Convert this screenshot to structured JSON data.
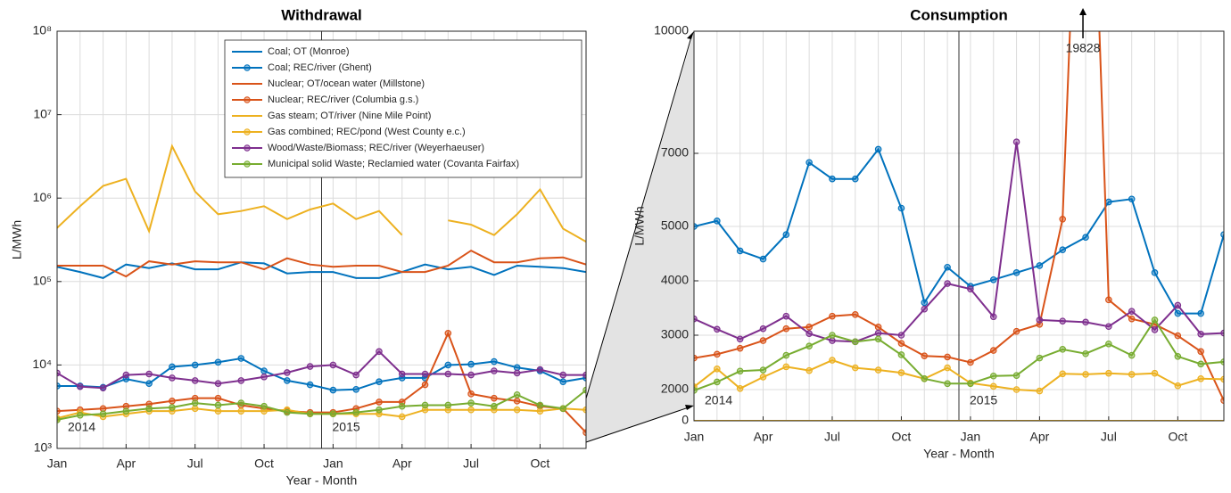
{
  "chart_data": [
    {
      "type": "line",
      "title": "Withdrawal",
      "x_label": "Year - Month",
      "y_label": "L/MWh",
      "yscale": "log",
      "grid": true,
      "legend": "top-right",
      "categories": [
        "Jan",
        null,
        null,
        "Apr",
        null,
        null,
        "Jul",
        null,
        null,
        "Oct",
        null,
        null,
        "Jan",
        null,
        null,
        "Apr",
        null,
        null,
        "Jul",
        null,
        null,
        "Oct",
        null,
        null
      ],
      "year_labels": [
        "2014",
        "2015"
      ],
      "ylim": [
        1000,
        100000000
      ],
      "yticks": [
        {
          "value": 1000,
          "label": "10³"
        },
        {
          "value": 10000,
          "label": "10⁴"
        },
        {
          "value": 100000,
          "label": "10⁵"
        },
        {
          "value": 1000000,
          "label": "10⁶"
        },
        {
          "value": 10000000,
          "label": "10⁷"
        },
        {
          "value": 100000000,
          "label": "10⁸"
        }
      ],
      "series": [
        {
          "name": "Coal; OT (Monroe)",
          "color": "#0072bd",
          "marker": false,
          "values": [
            150000,
            130000,
            110000,
            160000,
            145000,
            165000,
            140000,
            140000,
            170000,
            165000,
            125000,
            130000,
            130000,
            110000,
            110000,
            130000,
            160000,
            140000,
            150000,
            120000,
            155000,
            150000,
            145000,
            130000
          ]
        },
        {
          "name": "Coal; REC/river (Ghent)",
          "color": "#0072bd",
          "marker": true,
          "values": [
            5600,
            5600,
            5400,
            6800,
            6000,
            9500,
            10000,
            10800,
            12000,
            8500,
            6500,
            5800,
            5000,
            5100,
            6300,
            7000,
            7000,
            10000,
            10200,
            11000,
            9300,
            8500,
            6300,
            7000
          ]
        },
        {
          "name": "Nuclear; OT/ocean water (Millstone)",
          "color": "#d95319",
          "marker": false,
          "values": [
            155000,
            155000,
            155000,
            115000,
            175000,
            160000,
            175000,
            170000,
            170000,
            140000,
            190000,
            160000,
            150000,
            155000,
            155000,
            130000,
            130000,
            155000,
            235000,
            170000,
            170000,
            190000,
            195000,
            160000
          ]
        },
        {
          "name": "Nuclear; REC/river (Columbia g.s.)",
          "color": "#d95319",
          "marker": true,
          "values": [
            2800,
            2900,
            3000,
            3200,
            3400,
            3700,
            4000,
            4000,
            3300,
            3000,
            2800,
            2700,
            2700,
            3000,
            3600,
            3600,
            5800,
            24000,
            4500,
            4000,
            3700,
            3200,
            3000,
            1550
          ]
        },
        {
          "name": "Gas steam; OT/river (Nine Mile Point)",
          "color": "#edb120",
          "marker": false,
          "values": [
            440000,
            800000,
            1400000,
            1700000,
            400000,
            4200000,
            1200000,
            640000,
            700000,
            800000,
            560000,
            730000,
            860000,
            560000,
            700000,
            360000,
            null,
            540000,
            480000,
            360000,
            640000,
            1270000,
            430000,
            300000
          ]
        },
        {
          "name": "Gas combined; REC/pond (West County e.c.)",
          "color": "#edb120",
          "marker": true,
          "values": [
            2300,
            2700,
            2400,
            2600,
            2800,
            2800,
            3000,
            2800,
            2800,
            2800,
            2900,
            2600,
            2600,
            2600,
            2600,
            2400,
            2900,
            2900,
            2900,
            2900,
            2900,
            2800,
            3000,
            2900
          ]
        },
        {
          "name": "Wood/Waste/Biomass; REC/river (Weyerhaeuser)",
          "color": "#7e2f8e",
          "marker": true,
          "values": [
            8000,
            5500,
            5300,
            7600,
            7800,
            7000,
            6500,
            6000,
            6500,
            7200,
            8100,
            9600,
            10000,
            7600,
            14500,
            7800,
            7800,
            7800,
            7600,
            8500,
            8000,
            8800,
            7600,
            7600
          ]
        },
        {
          "name": "Municipal solid Waste; Reclamied water (Covanta Fairfax)",
          "color": "#77ac30",
          "marker": true,
          "values": [
            2200,
            2500,
            2600,
            2800,
            3000,
            3100,
            3500,
            3300,
            3500,
            3200,
            2700,
            2600,
            2600,
            2700,
            2900,
            3200,
            3300,
            3300,
            3500,
            3200,
            4400,
            3300,
            3000,
            5000
          ]
        }
      ]
    },
    {
      "type": "line",
      "title": "Consumption",
      "x_label": "Year - Month",
      "y_label": "L/MWh",
      "grid": true,
      "categories": [
        "Jan",
        null,
        null,
        "Apr",
        null,
        null,
        "Jul",
        null,
        null,
        "Oct",
        null,
        null,
        "Jan",
        null,
        null,
        "Apr",
        null,
        null,
        "Jul",
        null,
        null,
        "Oct",
        null,
        null
      ],
      "year_labels": [
        "2014",
        "2015"
      ],
      "ylim": [
        0,
        10000
      ],
      "yticks": [
        0,
        2000,
        3000,
        4000,
        5000,
        7000,
        10000
      ],
      "series": [
        {
          "color": "#0072bd",
          "marker": true,
          "values": [
            5000,
            5150,
            4550,
            4400,
            4850,
            6750,
            6300,
            6300,
            7100,
            5500,
            3600,
            4250,
            3900,
            4020,
            4150,
            4280,
            4570,
            4800,
            5670,
            5750,
            4150,
            3400,
            3400,
            4850
          ]
        },
        {
          "color": "#d95319",
          "marker": true,
          "values": [
            2580,
            2650,
            2760,
            2900,
            3120,
            3150,
            3350,
            3380,
            3150,
            2850,
            2620,
            2600,
            2500,
            2720,
            3070,
            3200,
            5200,
            19828,
            3650,
            3300,
            3200,
            2990,
            2700,
            1300
          ]
        },
        {
          "color": "#edb120",
          "marker": false,
          "values": [
            0,
            0,
            0,
            0,
            0,
            0,
            0,
            0,
            0,
            0,
            0,
            0,
            0,
            0,
            0,
            0,
            0,
            0,
            0,
            0,
            0,
            0,
            0,
            0
          ]
        },
        {
          "color": "#edb120",
          "marker": true,
          "values": [
            2050,
            2380,
            2020,
            2230,
            2420,
            2350,
            2540,
            2400,
            2360,
            2310,
            2200,
            2400,
            2120,
            2060,
            2000,
            1910,
            2290,
            2280,
            2300,
            2280,
            2300,
            2070,
            2200,
            2190
          ]
        },
        {
          "color": "#7e2f8e",
          "marker": true,
          "values": [
            3300,
            3110,
            2930,
            3120,
            3350,
            3030,
            2900,
            2880,
            3040,
            3000,
            3480,
            3950,
            3850,
            3340,
            7280,
            3280,
            3260,
            3240,
            3160,
            3440,
            3100,
            3550,
            3020,
            3040
          ]
        },
        {
          "color": "#77ac30",
          "marker": true,
          "values": [
            1950,
            2140,
            2340,
            2360,
            2630,
            2800,
            3000,
            2880,
            2930,
            2640,
            2200,
            2110,
            2110,
            2250,
            2260,
            2580,
            2740,
            2660,
            2840,
            2630,
            3280,
            2610,
            2470,
            2510
          ]
        }
      ]
    }
  ]
}
